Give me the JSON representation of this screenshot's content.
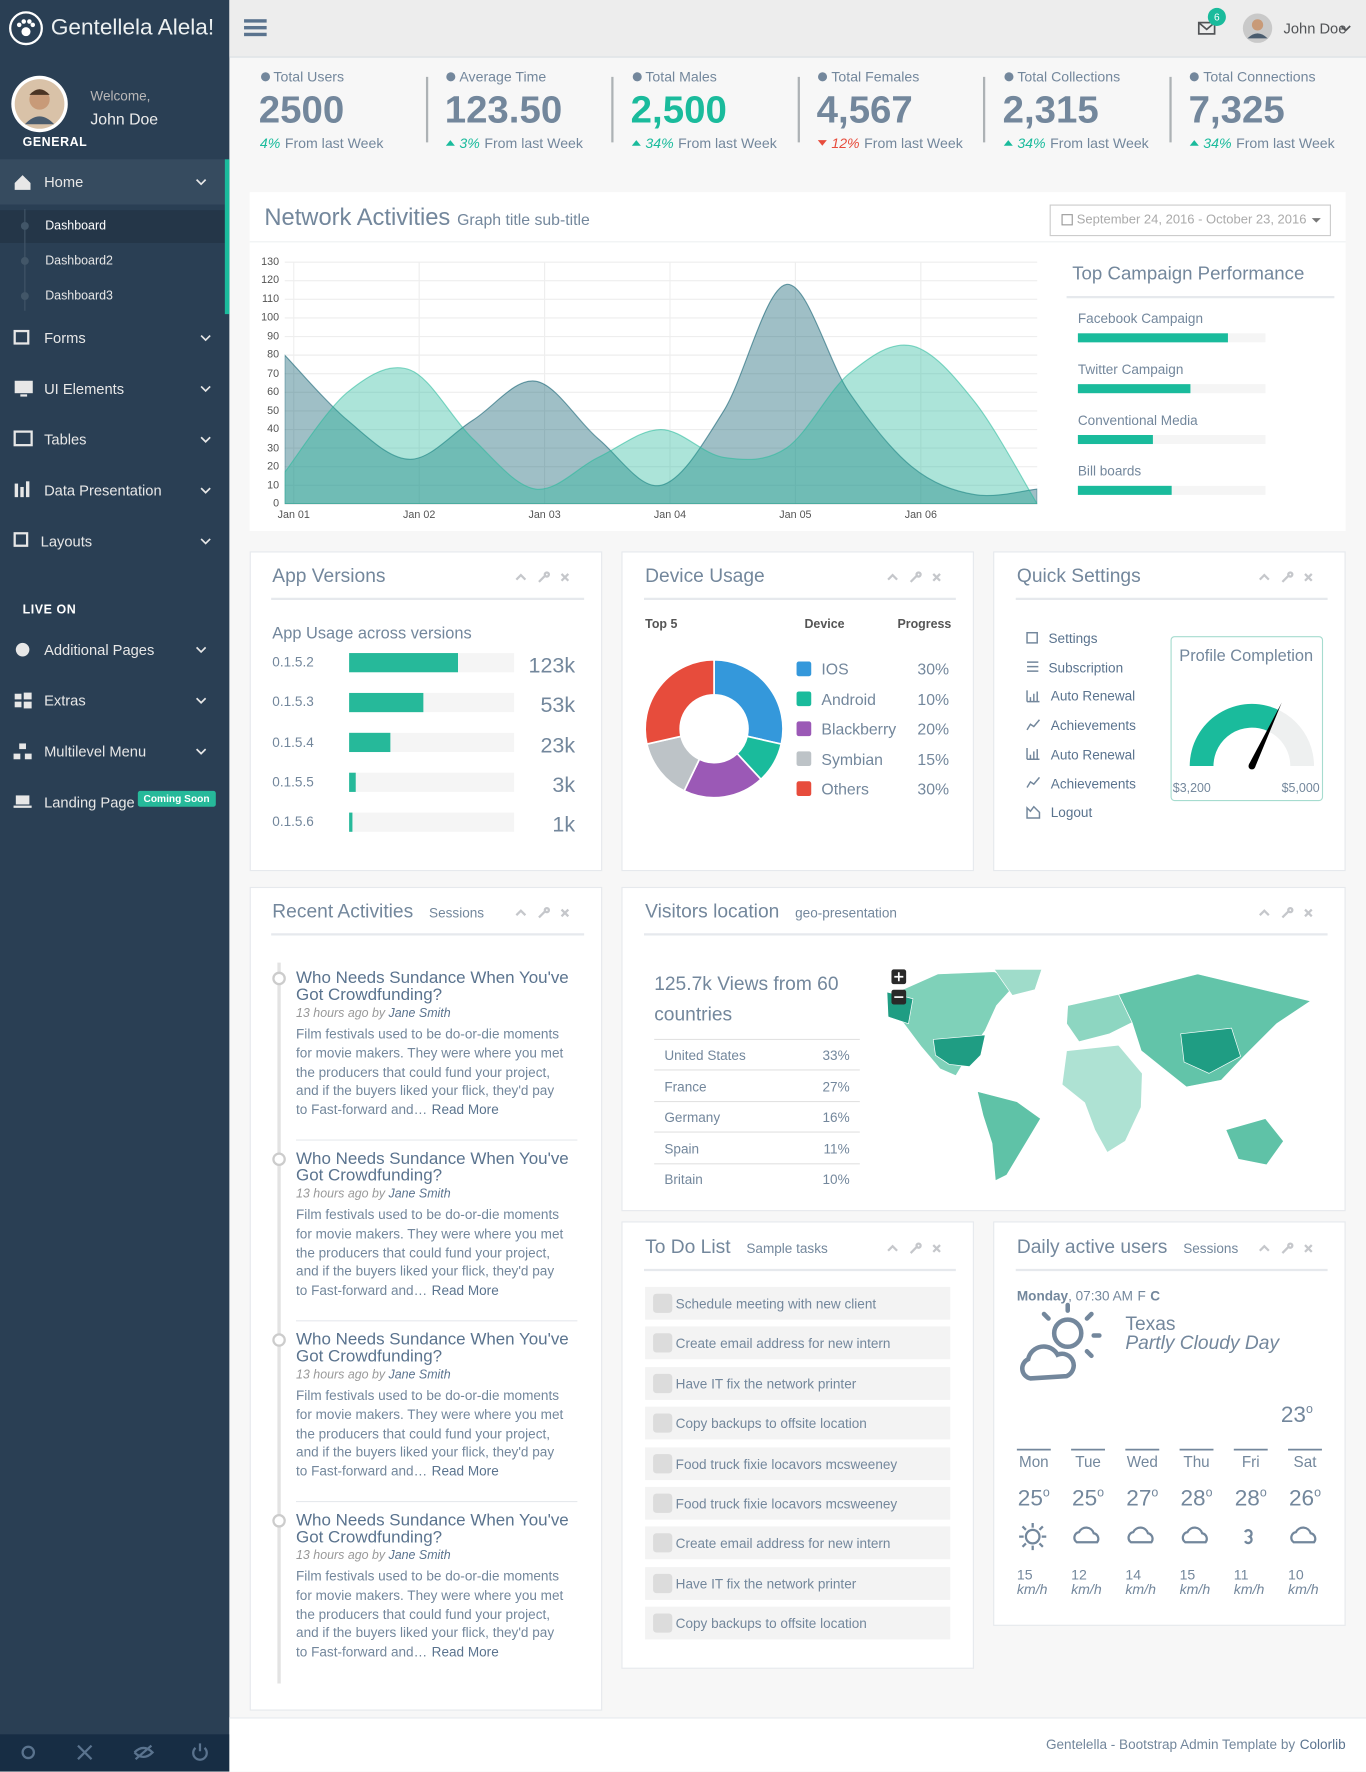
{
  "sidebar": {
    "brand": "Gentellela Alela!",
    "welcome": "Welcome,",
    "user": "John Doe",
    "sections": [
      {
        "title": "GENERAL",
        "items": [
          {
            "label": "Home",
            "children": [
              "Dashboard",
              "Dashboard2",
              "Dashboard3"
            ]
          },
          {
            "label": "Forms"
          },
          {
            "label": "UI Elements"
          },
          {
            "label": "Tables"
          },
          {
            "label": "Data Presentation"
          },
          {
            "label": "Layouts"
          }
        ]
      },
      {
        "title": "LIVE ON",
        "items": [
          {
            "label": "Additional Pages"
          },
          {
            "label": "Extras"
          },
          {
            "label": "Multilevel Menu"
          },
          {
            "label": "Landing Page",
            "badge": "Coming Soon"
          }
        ]
      }
    ]
  },
  "topbar": {
    "notifications": "6",
    "user": "John Doe"
  },
  "tiles": [
    {
      "label": "Total Users",
      "value": "2500",
      "change": "4%",
      "note": "From last Week",
      "color": "#1abb9c",
      "value_color": "#73879c"
    },
    {
      "label": "Average Time",
      "value": "123.50",
      "change": "3%",
      "trend": "up",
      "note": "From last Week",
      "color": "#1abb9c",
      "value_color": "#73879c"
    },
    {
      "label": "Total Males",
      "value": "2,500",
      "change": "34%",
      "trend": "up",
      "note": "From last Week",
      "color": "#1abb9c",
      "value_color": "#1abb9c"
    },
    {
      "label": "Total Females",
      "value": "4,567",
      "change": "12%",
      "trend": "down",
      "note": "From last Week",
      "color": "#e74c3c",
      "value_color": "#73879c"
    },
    {
      "label": "Total Collections",
      "value": "2,315",
      "change": "34%",
      "trend": "up",
      "note": "From last Week",
      "color": "#1abb9c",
      "value_color": "#73879c"
    },
    {
      "label": "Total Connections",
      "value": "7,325",
      "change": "34%",
      "trend": "up",
      "note": "From last Week",
      "color": "#1abb9c",
      "value_color": "#73879c"
    }
  ],
  "network": {
    "title": "Network Activities",
    "subtitle": "Graph title sub-title",
    "date_range": "September 24, 2016 - October 23, 2016"
  },
  "chart_data": {
    "type": "area",
    "categories": [
      "Jan 01",
      null,
      "Jan 02",
      null,
      "Jan 03",
      null,
      "Jan 04",
      null,
      "Jan 05",
      null,
      "Jan 06",
      null,
      null
    ],
    "series": [
      {
        "color": "#03586a",
        "values": [
          80,
          45,
          24,
          45,
          66,
          35,
          10,
          50,
          118,
          60,
          20,
          5,
          8
        ]
      },
      {
        "color": "#26b99a",
        "values": [
          17,
          60,
          72,
          35,
          8,
          25,
          40,
          25,
          30,
          70,
          85,
          55,
          0
        ]
      }
    ],
    "ylim": [
      0,
      130
    ],
    "yticks": [
      0,
      10,
      20,
      30,
      40,
      50,
      60,
      70,
      80,
      90,
      100,
      110,
      120,
      130
    ],
    "grid": true
  },
  "campaigns": {
    "title": "Top Campaign Performance",
    "xlim": [
      0,
      100
    ],
    "color": "#1abb9c",
    "categories": [
      "Facebook Campaign",
      "Twitter Campaign",
      "Conventional Media",
      "Bill boards"
    ],
    "values": [
      80,
      60,
      40,
      50
    ]
  },
  "app_versions": {
    "title": "App Versions",
    "subtitle": "App Usage across versions",
    "xlim": [
      0,
      100
    ],
    "color": "#26b99a",
    "categories": [
      "0.1.5.2",
      "0.1.5.3",
      "0.1.5.4",
      "0.1.5.5",
      "0.1.5.6"
    ],
    "values": [
      66,
      45,
      25,
      4,
      2
    ],
    "usage": [
      "123k",
      "53k",
      "23k",
      "3k",
      "1k"
    ]
  },
  "device_usage": {
    "title": "Device Usage",
    "type": "doughnut",
    "headers": [
      "Top 5",
      "Device",
      "Progress"
    ],
    "categories": [
      "IOS",
      "Android",
      "Blackberry",
      "Symbian",
      "Others"
    ],
    "values": [
      30,
      10,
      20,
      15,
      30
    ],
    "value_labels": [
      "30%",
      "10%",
      "20%",
      "15%",
      "30%"
    ],
    "colors": [
      "#3498db",
      "#1abb9c",
      "#9b59b6",
      "#bdc3c7",
      "#e74c3c"
    ]
  },
  "quick_settings": {
    "title": "Quick Settings",
    "items": [
      "Settings",
      "Subscription",
      "Auto Renewal",
      "Achievements",
      "Auto Renewal",
      "Achievements",
      "Logout"
    ],
    "gauge": {
      "title": "Profile Completion",
      "min": 0,
      "value": 3200,
      "value_label": "$3,200",
      "max": 5000,
      "max_label": "$5,000",
      "color": "#1abb9c"
    }
  },
  "recent_activities": {
    "title": "Recent Activities",
    "subtitle": "Sessions",
    "items": [
      {
        "title": "Who Needs Sundance When You've Got Crowdfunding?",
        "time": "13 hours ago",
        "by": "by",
        "author": "Jane Smith",
        "text": "Film festivals used to be do-or-die moments for movie makers. They were where you met the producers that could fund your project, and if the buyers liked your flick, they'd pay to Fast-forward and…",
        "more": "Read More"
      },
      {
        "title": "Who Needs Sundance When You've Got Crowdfunding?",
        "time": "13 hours ago",
        "by": "by",
        "author": "Jane Smith",
        "text": "Film festivals used to be do-or-die moments for movie makers. They were where you met the producers that could fund your project, and if the buyers liked your flick, they'd pay to Fast-forward and…",
        "more": "Read More"
      },
      {
        "title": "Who Needs Sundance When You've Got Crowdfunding?",
        "time": "13 hours ago",
        "by": "by",
        "author": "Jane Smith",
        "text": "Film festivals used to be do-or-die moments for movie makers. They were where you met the producers that could fund your project, and if the buyers liked your flick, they'd pay to Fast-forward and…",
        "more": "Read More"
      },
      {
        "title": "Who Needs Sundance When You've Got Crowdfunding?",
        "time": "13 hours ago",
        "by": "by",
        "author": "Jane Smith",
        "text": "Film festivals used to be do-or-die moments for movie makers. They were where you met the producers that could fund your project, and if the buyers liked your flick, they'd pay to Fast-forward and…",
        "more": "Read More"
      }
    ]
  },
  "visitors": {
    "title": "Visitors location",
    "subtitle": "geo-presentation",
    "headline": "125.7k Views from 60 countries",
    "rows": [
      [
        "United States",
        "33%"
      ],
      [
        "France",
        "27%"
      ],
      [
        "Germany",
        "16%"
      ],
      [
        "Spain",
        "11%"
      ],
      [
        "Britain",
        "10%"
      ]
    ]
  },
  "todo": {
    "title": "To Do List",
    "subtitle": "Sample tasks",
    "items": [
      "Schedule meeting with new client",
      "Create email address for new intern",
      "Have IT fix the network printer",
      "Copy backups to offsite location",
      "Food truck fixie locavors mcsweeney",
      "Food truck fixie locavors mcsweeney",
      "Create email address for new intern",
      "Have IT fix the network printer",
      "Copy backups to offsite location"
    ]
  },
  "daily": {
    "title": "Daily active users",
    "subtitle": "Sessions",
    "day": "Monday",
    "time": ", 07:30 AM",
    "units": [
      "F",
      "C"
    ],
    "city": "Texas",
    "condition": "Partly Cloudy Day",
    "temp": "23",
    "degree": "o",
    "wind_unit": "km/h",
    "days": [
      {
        "day": "Mon",
        "temp": "25",
        "wind": "15"
      },
      {
        "day": "Tue",
        "temp": "25",
        "wind": "12"
      },
      {
        "day": "Wed",
        "temp": "27",
        "wind": "14"
      },
      {
        "day": "Thu",
        "temp": "28",
        "wind": "15"
      },
      {
        "day": "Fri",
        "temp": "28",
        "wind": "11"
      },
      {
        "day": "Sat",
        "temp": "26",
        "wind": "10"
      }
    ]
  },
  "footer": {
    "text": "Gentelella - Bootstrap Admin Template by",
    "link": "Colorlib"
  }
}
